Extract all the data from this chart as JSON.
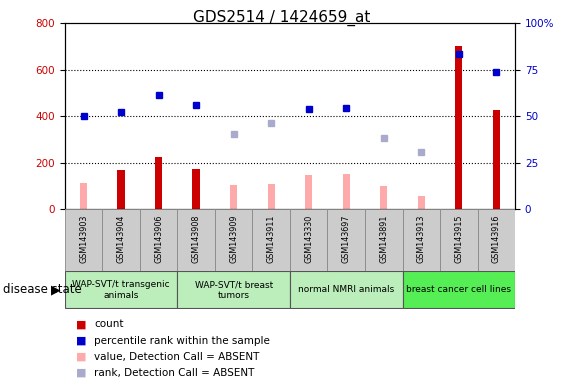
{
  "title": "GDS2514 / 1424659_at",
  "samples": [
    "GSM143903",
    "GSM143904",
    "GSM143906",
    "GSM143908",
    "GSM143909",
    "GSM143911",
    "GSM143330",
    "GSM143697",
    "GSM143891",
    "GSM143913",
    "GSM143915",
    "GSM143916"
  ],
  "count_values": [
    null,
    170,
    225,
    175,
    null,
    null,
    null,
    null,
    null,
    null,
    700,
    425
  ],
  "value_absent": [
    115,
    null,
    null,
    null,
    105,
    108,
    148,
    153,
    100,
    55,
    null,
    null
  ],
  "rank_present": [
    400,
    420,
    490,
    450,
    null,
    null,
    430,
    435,
    null,
    null,
    665,
    590
  ],
  "rank_absent": [
    null,
    null,
    null,
    null,
    325,
    370,
    null,
    null,
    305,
    245,
    null,
    null
  ],
  "group_boundaries": [
    {
      "start": 0,
      "end": 2,
      "label": "WAP-SVT/t transgenic\nanimals",
      "color": "#bbeebb"
    },
    {
      "start": 3,
      "end": 5,
      "label": "WAP-SVT/t breast\ntumors",
      "color": "#bbeebb"
    },
    {
      "start": 6,
      "end": 8,
      "label": "normal NMRI animals",
      "color": "#bbeebb"
    },
    {
      "start": 9,
      "end": 11,
      "label": "breast cancer cell lines",
      "color": "#55ee55"
    }
  ],
  "ylim_left": [
    0,
    800
  ],
  "ylim_right": [
    0,
    100
  ],
  "yticks_left": [
    0,
    200,
    400,
    600,
    800
  ],
  "yticks_right": [
    0,
    25,
    50,
    75,
    100
  ],
  "count_color": "#cc0000",
  "rank_present_color": "#0000cc",
  "value_absent_color": "#ffaaaa",
  "rank_absent_color": "#aaaacc",
  "sample_box_color": "#cccccc",
  "plot_bg_color": "#ffffff",
  "dotted_grid_levels": [
    200,
    400,
    600
  ],
  "bar_width": 0.35
}
